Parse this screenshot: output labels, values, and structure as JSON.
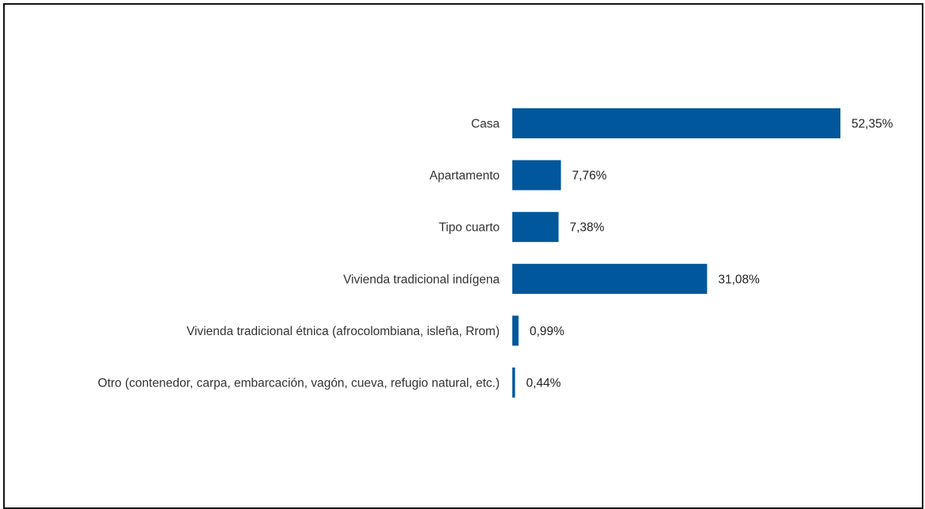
{
  "chart_data": {
    "type": "bar",
    "orientation": "horizontal",
    "categories": [
      "Casa",
      "Apartamento",
      "Tipo cuarto",
      "Vivienda tradicional indígena",
      "Vivienda tradicional étnica (afrocolombiana, isleña, Rrom)",
      "Otro (contenedor, carpa, embarcación, vagón, cueva, refugio natural, etc.)"
    ],
    "values": [
      52.35,
      7.76,
      7.38,
      31.08,
      0.99,
      0.44
    ],
    "value_labels": [
      "52,35%",
      "7,76%",
      "7,38%",
      "31,08%",
      "0,99%",
      "0,44%"
    ],
    "unit": "%",
    "xlim": [
      0,
      52.35
    ],
    "grid": false,
    "legend": "none",
    "bar_color": "#00579b"
  }
}
